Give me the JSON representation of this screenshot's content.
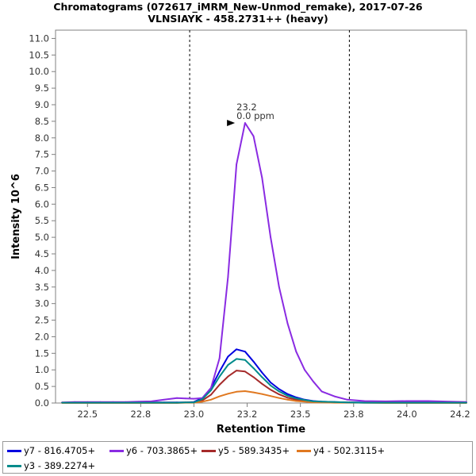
{
  "chart_data": {
    "type": "line",
    "title": "Chromatograms (072617_iMRM_New-Unmod_remake), 2017-07-26",
    "subtitle": "VLNSIAYK - 458.2731++ (heavy)",
    "xlabel": "Retention Time",
    "ylabel": "Intensity 10^6",
    "xlim": [
      22.35,
      24.28
    ],
    "ylim": [
      0,
      11.25
    ],
    "x_ticks": [
      "22.5",
      "22.8",
      "23.0",
      "23.2",
      "23.5",
      "23.8",
      "24.0",
      "24.2"
    ],
    "x_tick_values": [
      22.5,
      22.75,
      23.0,
      23.25,
      23.5,
      23.75,
      24.0,
      24.25
    ],
    "y_ticks": [
      "0.0",
      "0.5",
      "1.0",
      "1.5",
      "2.0",
      "2.5",
      "3.0",
      "3.5",
      "4.0",
      "4.5",
      "5.0",
      "5.5",
      "6.0",
      "6.5",
      "7.0",
      "7.5",
      "8.0",
      "8.5",
      "9.0",
      "9.5",
      "10.0",
      "10.5",
      "11.0"
    ],
    "boundaries": [
      22.98,
      23.73
    ],
    "peak_annotation": {
      "x": 23.2,
      "y": 8.45,
      "rt_label": "23.2",
      "ppm_label": "0.0 ppm",
      "color": "#8a2be2"
    },
    "x": [
      22.38,
      22.44,
      22.5,
      22.56,
      22.62,
      22.68,
      22.74,
      22.8,
      22.86,
      22.92,
      22.96,
      23.0,
      23.04,
      23.08,
      23.12,
      23.16,
      23.2,
      23.24,
      23.28,
      23.32,
      23.36,
      23.4,
      23.44,
      23.48,
      23.52,
      23.56,
      23.6,
      23.66,
      23.72,
      23.8,
      23.9,
      24.0,
      24.1,
      24.2,
      24.28
    ],
    "series": [
      {
        "name": "y7 - 816.4705+",
        "color": "#0000e0",
        "values": [
          0.01,
          0.01,
          0.01,
          0.01,
          0.01,
          0.01,
          0.02,
          0.02,
          0.02,
          0.02,
          0.02,
          0.03,
          0.15,
          0.45,
          0.95,
          1.4,
          1.62,
          1.55,
          1.25,
          0.92,
          0.62,
          0.42,
          0.27,
          0.17,
          0.1,
          0.06,
          0.04,
          0.03,
          0.02,
          0.02,
          0.02,
          0.02,
          0.02,
          0.01,
          0.01
        ]
      },
      {
        "name": "y6 - 703.3865+",
        "color": "#8a2be2",
        "values": [
          0.02,
          0.03,
          0.03,
          0.03,
          0.03,
          0.03,
          0.04,
          0.05,
          0.1,
          0.15,
          0.14,
          0.13,
          0.15,
          0.45,
          1.35,
          3.8,
          7.2,
          8.45,
          8.05,
          6.8,
          5.0,
          3.5,
          2.4,
          1.55,
          1.0,
          0.65,
          0.35,
          0.2,
          0.1,
          0.06,
          0.05,
          0.06,
          0.06,
          0.04,
          0.03
        ]
      },
      {
        "name": "y5 - 589.3435+",
        "color": "#a52a2a",
        "values": [
          0.01,
          0.01,
          0.01,
          0.01,
          0.01,
          0.01,
          0.01,
          0.01,
          0.01,
          0.01,
          0.02,
          0.02,
          0.08,
          0.25,
          0.55,
          0.8,
          0.98,
          0.95,
          0.78,
          0.58,
          0.4,
          0.26,
          0.16,
          0.1,
          0.06,
          0.04,
          0.03,
          0.02,
          0.02,
          0.01,
          0.01,
          0.01,
          0.01,
          0.01,
          0.01
        ]
      },
      {
        "name": "y4 - 502.3115+",
        "color": "#e07820",
        "values": [
          0.0,
          0.0,
          0.0,
          0.0,
          0.0,
          0.0,
          0.0,
          0.0,
          0.0,
          0.0,
          0.01,
          0.01,
          0.04,
          0.1,
          0.2,
          0.28,
          0.34,
          0.36,
          0.32,
          0.27,
          0.21,
          0.15,
          0.1,
          0.06,
          0.04,
          0.02,
          0.02,
          0.01,
          0.01,
          0.01,
          0.0,
          0.0,
          0.0,
          0.0,
          0.0
        ]
      },
      {
        "name": "y3 - 389.2274+",
        "color": "#008b8b",
        "values": [
          0.01,
          0.01,
          0.01,
          0.01,
          0.01,
          0.01,
          0.01,
          0.01,
          0.01,
          0.01,
          0.02,
          0.02,
          0.12,
          0.38,
          0.8,
          1.15,
          1.33,
          1.3,
          1.05,
          0.78,
          0.53,
          0.35,
          0.22,
          0.14,
          0.09,
          0.05,
          0.04,
          0.03,
          0.02,
          0.01,
          0.01,
          0.01,
          0.01,
          0.01,
          0.01
        ]
      }
    ],
    "legend_position": "bottom",
    "grid": false
  }
}
